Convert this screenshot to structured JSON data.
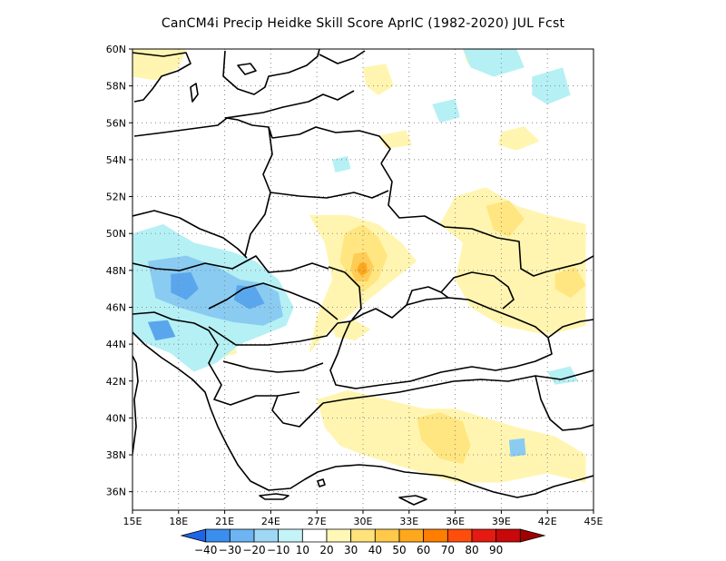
{
  "title": "CanCM4i Precip Heidke Skill Score AprIC (1982-2020) JUL Fcst",
  "map": {
    "lon_range": [
      15,
      45
    ],
    "lat_range": [
      35,
      60
    ],
    "lon_ticks": [
      15,
      18,
      21,
      24,
      27,
      30,
      33,
      36,
      39,
      42,
      45
    ],
    "lon_tick_labels": [
      "15E",
      "18E",
      "21E",
      "24E",
      "27E",
      "30E",
      "33E",
      "36E",
      "39E",
      "42E",
      "45E"
    ],
    "lat_ticks": [
      36,
      38,
      40,
      42,
      44,
      46,
      48,
      50,
      52,
      54,
      56,
      58,
      60
    ],
    "lat_tick_labels": [
      "36N",
      "38N",
      "40N",
      "42N",
      "44N",
      "46N",
      "48N",
      "50N",
      "52N",
      "54N",
      "56N",
      "58N",
      "60N"
    ],
    "grid": "dotted",
    "fields": [
      {
        "level": 10,
        "color": "#fff5b0",
        "polygon": [
          [
            26.5,
            51.0
          ],
          [
            29.0,
            51.0
          ],
          [
            31.0,
            50.5
          ],
          [
            32.5,
            49.5
          ],
          [
            33.5,
            48.5
          ],
          [
            32.0,
            47.5
          ],
          [
            30.5,
            46.5
          ],
          [
            29.0,
            45.5
          ],
          [
            27.5,
            44.5
          ],
          [
            26.5,
            43.5
          ],
          [
            27.0,
            45.5
          ],
          [
            28.0,
            47.5
          ],
          [
            27.5,
            49.5
          ]
        ]
      },
      {
        "level": 20,
        "color": "#ffe680",
        "polygon": [
          [
            28.8,
            50.0
          ],
          [
            30.0,
            50.5
          ],
          [
            31.0,
            49.8
          ],
          [
            31.6,
            48.8
          ],
          [
            31.0,
            47.5
          ],
          [
            30.0,
            46.8
          ],
          [
            29.2,
            47.5
          ],
          [
            28.5,
            48.5
          ]
        ]
      },
      {
        "level": 30,
        "color": "#ffcc55",
        "polygon": [
          [
            29.4,
            48.9
          ],
          [
            30.2,
            49.0
          ],
          [
            30.7,
            48.2
          ],
          [
            30.3,
            47.4
          ],
          [
            29.5,
            47.4
          ],
          [
            29.2,
            48.1
          ]
        ]
      },
      {
        "level": 40,
        "color": "#ffa61a",
        "polygon": [
          [
            29.8,
            48.4
          ],
          [
            30.2,
            48.4
          ],
          [
            30.3,
            47.9
          ],
          [
            29.9,
            47.7
          ],
          [
            29.6,
            48.0
          ]
        ]
      },
      {
        "level": 10,
        "color": "#fff5b0",
        "polygon": [
          [
            36.0,
            52.0
          ],
          [
            38.0,
            52.5
          ],
          [
            40.0,
            51.5
          ],
          [
            42.0,
            51.0
          ],
          [
            44.5,
            50.5
          ],
          [
            44.5,
            48.0
          ],
          [
            44.5,
            45.0
          ],
          [
            42.0,
            44.5
          ],
          [
            39.0,
            45.0
          ],
          [
            37.0,
            46.0
          ],
          [
            36.0,
            47.5
          ],
          [
            36.5,
            49.5
          ],
          [
            35.0,
            50.5
          ]
        ]
      },
      {
        "level": 20,
        "color": "#ffe680",
        "polygon": [
          [
            38.0,
            51.5
          ],
          [
            39.5,
            51.8
          ],
          [
            40.5,
            50.8
          ],
          [
            39.5,
            49.8
          ],
          [
            38.5,
            50.2
          ]
        ]
      },
      {
        "level": 20,
        "color": "#ffe680",
        "polygon": [
          [
            42.5,
            47.8
          ],
          [
            43.8,
            48.2
          ],
          [
            44.5,
            47.2
          ],
          [
            43.5,
            46.5
          ],
          [
            42.5,
            47.0
          ]
        ]
      },
      {
        "level": 10,
        "color": "#fff5b0",
        "polygon": [
          [
            27.0,
            41.0
          ],
          [
            29.0,
            41.5
          ],
          [
            31.5,
            41.0
          ],
          [
            34.0,
            40.5
          ],
          [
            36.0,
            40.5
          ],
          [
            38.0,
            40.0
          ],
          [
            40.0,
            39.5
          ],
          [
            42.5,
            39.0
          ],
          [
            44.5,
            38.0
          ],
          [
            44.5,
            36.5
          ],
          [
            42.0,
            37.0
          ],
          [
            39.0,
            36.5
          ],
          [
            36.0,
            36.5
          ],
          [
            34.0,
            37.0
          ],
          [
            32.0,
            37.5
          ],
          [
            30.0,
            38.0
          ],
          [
            28.5,
            38.5
          ],
          [
            27.5,
            39.5
          ]
        ]
      },
      {
        "level": 20,
        "color": "#ffe680",
        "polygon": [
          [
            33.5,
            40.0
          ],
          [
            35.0,
            40.3
          ],
          [
            36.5,
            39.8
          ],
          [
            37.0,
            38.5
          ],
          [
            36.5,
            37.5
          ],
          [
            35.0,
            37.8
          ],
          [
            33.8,
            38.8
          ]
        ]
      },
      {
        "level": 10,
        "color": "#fff5b0",
        "polygon": [
          [
            28.0,
            45.0
          ],
          [
            29.5,
            45.3
          ],
          [
            30.5,
            44.8
          ],
          [
            29.5,
            44.2
          ],
          [
            28.2,
            44.4
          ]
        ]
      },
      {
        "level": 10,
        "color": "#fff5b0",
        "polygon": [
          [
            15.0,
            60.0
          ],
          [
            18.5,
            60.0
          ],
          [
            18.0,
            59.0
          ],
          [
            16.5,
            58.3
          ],
          [
            15.0,
            58.5
          ]
        ]
      },
      {
        "level": 10,
        "color": "#fff5b0",
        "polygon": [
          [
            30.0,
            59.0
          ],
          [
            31.5,
            59.2
          ],
          [
            32.0,
            58.0
          ],
          [
            31.0,
            57.5
          ],
          [
            30.2,
            58.0
          ]
        ]
      },
      {
        "level": 10,
        "color": "#fff5b0",
        "polygon": [
          [
            36.5,
            60.0
          ],
          [
            38.5,
            60.0
          ],
          [
            38.0,
            59.0
          ],
          [
            36.8,
            59.2
          ]
        ]
      },
      {
        "level": 10,
        "color": "#fff5b0",
        "polygon": [
          [
            39.0,
            55.5
          ],
          [
            40.5,
            55.8
          ],
          [
            41.5,
            55.0
          ],
          [
            40.0,
            54.5
          ],
          [
            38.8,
            54.8
          ]
        ]
      },
      {
        "level": 10,
        "color": "#fff5b0",
        "polygon": [
          [
            31.0,
            55.3
          ],
          [
            32.8,
            55.6
          ],
          [
            33.2,
            54.8
          ],
          [
            31.5,
            54.6
          ]
        ]
      },
      {
        "level": 10,
        "color": "#fff5b0",
        "polygon": [
          [
            20.0,
            44.5
          ],
          [
            21.5,
            44.5
          ],
          [
            21.8,
            43.5
          ],
          [
            20.5,
            43.2
          ],
          [
            19.8,
            43.8
          ]
        ]
      },
      {
        "level": -10,
        "color": "#b5f0f5",
        "polygon": [
          [
            15.0,
            50.0
          ],
          [
            17.0,
            50.5
          ],
          [
            19.0,
            49.5
          ],
          [
            21.5,
            49.0
          ],
          [
            23.0,
            48.5
          ],
          [
            24.5,
            47.5
          ],
          [
            25.5,
            46.0
          ],
          [
            25.0,
            45.0
          ],
          [
            23.5,
            44.5
          ],
          [
            22.0,
            44.0
          ],
          [
            20.5,
            43.0
          ],
          [
            19.0,
            42.5
          ],
          [
            17.5,
            43.5
          ],
          [
            16.0,
            44.0
          ],
          [
            15.0,
            44.5
          ]
        ]
      },
      {
        "level": -20,
        "color": "#8acbf2",
        "polygon": [
          [
            16.0,
            48.5
          ],
          [
            18.5,
            48.8
          ],
          [
            20.5,
            48.2
          ],
          [
            22.0,
            47.5
          ],
          [
            23.5,
            47.3
          ],
          [
            24.5,
            46.8
          ],
          [
            24.8,
            45.5
          ],
          [
            23.5,
            45.0
          ],
          [
            21.5,
            45.2
          ],
          [
            20.0,
            45.5
          ],
          [
            18.0,
            46.0
          ],
          [
            16.5,
            46.5
          ]
        ]
      },
      {
        "level": -30,
        "color": "#5aa6ec",
        "polygon": [
          [
            17.5,
            47.8
          ],
          [
            18.8,
            47.9
          ],
          [
            19.3,
            47.0
          ],
          [
            18.5,
            46.4
          ],
          [
            17.5,
            46.8
          ]
        ]
      },
      {
        "level": -30,
        "color": "#5aa6ec",
        "polygon": [
          [
            21.8,
            47.2
          ],
          [
            23.0,
            47.1
          ],
          [
            23.6,
            46.2
          ],
          [
            22.6,
            45.9
          ],
          [
            21.6,
            46.4
          ]
        ]
      },
      {
        "level": -30,
        "color": "#5aa6ec",
        "polygon": [
          [
            16.0,
            45.2
          ],
          [
            17.3,
            45.3
          ],
          [
            17.8,
            44.4
          ],
          [
            16.5,
            44.2
          ]
        ]
      },
      {
        "level": -10,
        "color": "#b5f0f5",
        "polygon": [
          [
            36.5,
            60.0
          ],
          [
            40.0,
            60.0
          ],
          [
            40.5,
            59.0
          ],
          [
            38.5,
            58.5
          ],
          [
            37.0,
            59.0
          ]
        ]
      },
      {
        "level": -10,
        "color": "#b5f0f5",
        "polygon": [
          [
            41.0,
            58.5
          ],
          [
            43.0,
            59.0
          ],
          [
            43.5,
            57.5
          ],
          [
            42.0,
            57.0
          ],
          [
            41.0,
            57.5
          ]
        ]
      },
      {
        "level": -10,
        "color": "#b5f0f5",
        "polygon": [
          [
            34.5,
            57.0
          ],
          [
            36.0,
            57.3
          ],
          [
            36.3,
            56.3
          ],
          [
            35.0,
            56.0
          ]
        ]
      },
      {
        "level": -10,
        "color": "#b5f0f5",
        "polygon": [
          [
            28.0,
            54.0
          ],
          [
            29.0,
            54.2
          ],
          [
            29.2,
            53.5
          ],
          [
            28.2,
            53.3
          ]
        ]
      },
      {
        "level": -10,
        "color": "#b5f0f5",
        "polygon": [
          [
            42.0,
            42.5
          ],
          [
            43.5,
            42.8
          ],
          [
            44.0,
            42.0
          ],
          [
            42.5,
            41.8
          ]
        ]
      },
      {
        "level": -20,
        "color": "#8acbf2",
        "polygon": [
          [
            39.5,
            38.8
          ],
          [
            40.5,
            38.9
          ],
          [
            40.6,
            38.0
          ],
          [
            39.6,
            37.9
          ]
        ]
      }
    ]
  },
  "colorbar": {
    "levels": [
      -40,
      -30,
      -20,
      -10,
      10,
      20,
      30,
      40,
      50,
      60,
      70,
      80,
      90
    ],
    "labels": [
      "-40",
      "-30",
      "-20",
      "-10",
      "10",
      "20",
      "30",
      "40",
      "50",
      "60",
      "70",
      "80",
      "90"
    ],
    "colors": [
      "#1e64e6",
      "#3a8eee",
      "#6cb4f2",
      "#9ed8f5",
      "#c4f4f7",
      "#ffffff",
      "#fff7b5",
      "#ffe27a",
      "#ffc94a",
      "#ffa81e",
      "#ff7e00",
      "#ff4e0c",
      "#e51a10",
      "#c8080a",
      "#a00000"
    ]
  }
}
